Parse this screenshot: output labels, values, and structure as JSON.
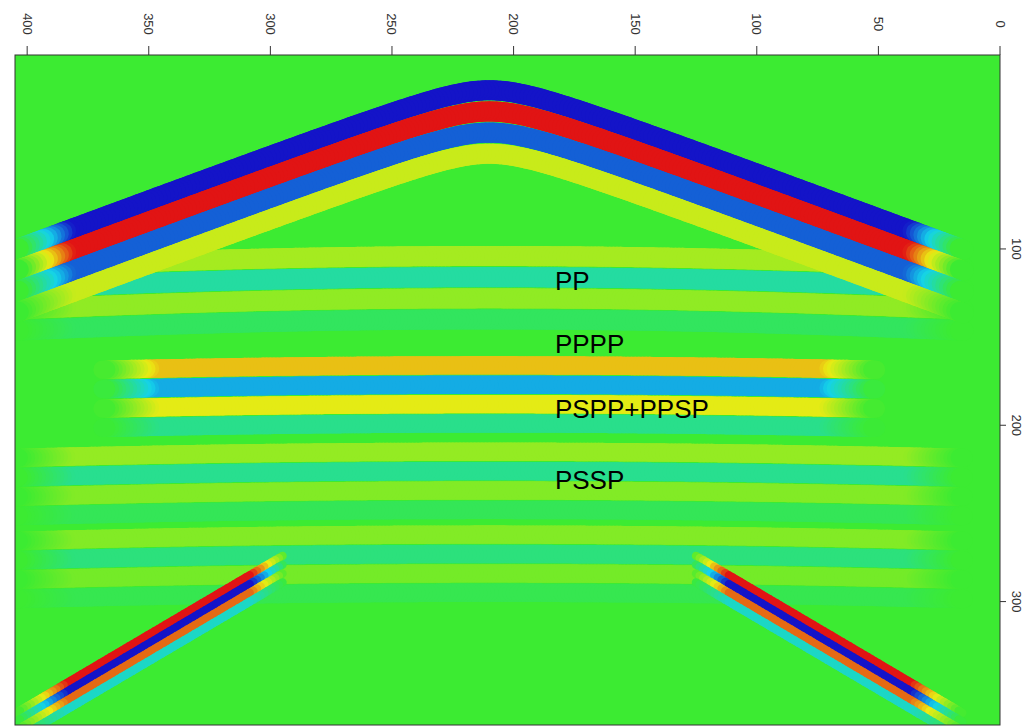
{
  "chart_data": {
    "type": "seismic",
    "xlim": [
      405,
      0
    ],
    "xticks": [
      0,
      50,
      100,
      150,
      200,
      250,
      300,
      350,
      400
    ],
    "ylim": [
      -10,
      370
    ],
    "yticks": [
      100,
      200,
      300
    ],
    "events": [
      {
        "type": "hyperbola",
        "apex_x": 210,
        "apex_t": 10,
        "velocity": 1.95,
        "amplitude": -1,
        "period": 12,
        "offset_range": [
          0,
          195
        ]
      },
      {
        "type": "hyperbola",
        "apex_x": 210,
        "apex_t": 104,
        "velocity": 5.3,
        "amplitude": 0.3,
        "period": 12,
        "offset_range": [
          0,
          195
        ]
      },
      {
        "type": "hyperbola",
        "apex_x": 210,
        "apex_t": 166,
        "velocity": 5.5,
        "amplitude": 0.6,
        "period": 11,
        "offset_range": [
          0,
          160
        ]
      },
      {
        "type": "hyperbola",
        "apex_x": 210,
        "apex_t": 215,
        "velocity": 5,
        "amplitude": 0.25,
        "period": 11,
        "offset_range": [
          0,
          195
        ]
      },
      {
        "type": "hyperbola",
        "apex_x": 210,
        "apex_t": 262,
        "velocity": 4.5,
        "amplitude": 0.2,
        "period": 11,
        "offset_range": [
          0,
          195
        ]
      },
      {
        "type": "linear",
        "apex_x": 210,
        "apex_t": 205,
        "velocity": 1.23,
        "amplitude": 1,
        "period": 5,
        "offset_range": [
          85,
          195
        ]
      }
    ],
    "annotations": [
      {
        "text": "PP",
        "x": 183,
        "t": 118
      },
      {
        "text": "PPPP",
        "x": 183,
        "t": 154
      },
      {
        "text": "PSPP+PPSP",
        "x": 183,
        "t": 191
      },
      {
        "text": "PSSP",
        "x": 183,
        "t": 231
      }
    ]
  }
}
